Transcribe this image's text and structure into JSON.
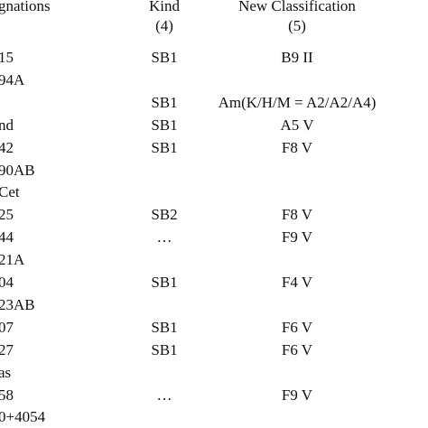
{
  "table": {
    "headers": [
      {
        "label": "gnations",
        "sub": ""
      },
      {
        "label": "Kind",
        "sub": "(4)"
      },
      {
        "label": "New Classification",
        "sub": "(5)"
      }
    ],
    "rows": [
      {
        "designation": "15",
        "kind": "SB1",
        "classification": "B9 II"
      },
      {
        "designation": "94A",
        "kind": "",
        "classification": ""
      },
      {
        "designation": "",
        "kind": "SB1",
        "classification": "Am(K/H/M = A2/A2/A4)"
      },
      {
        "designation": "nd",
        "kind": "SB1",
        "classification": "A5 V"
      },
      {
        "designation": "42",
        "kind": "SB1",
        "classification": "F8 V"
      },
      {
        "designation": "90AB",
        "kind": "",
        "classification": ""
      },
      {
        "designation": " Cet",
        "kind": "",
        "classification": ""
      },
      {
        "designation": "25",
        "kind": "SB2",
        "classification": "F8 V"
      },
      {
        "designation": "44",
        "kind": "…",
        "classification": "F9 V"
      },
      {
        "designation": "21A",
        "kind": "",
        "classification": ""
      },
      {
        "designation": "04",
        "kind": "SB1",
        "classification": "F4 V"
      },
      {
        "designation": "23AB",
        "kind": "",
        "classification": ""
      },
      {
        "designation": "07",
        "kind": "SB1",
        "classification": "F6 V"
      },
      {
        "designation": "27",
        "kind": "SB1",
        "classification": "F6 V"
      },
      {
        "designation": "as",
        "kind": "",
        "classification": ""
      },
      {
        "designation": "58",
        "kind": "…",
        "classification": "F9 V"
      },
      {
        "designation": "0+4054",
        "kind": "",
        "classification": ""
      }
    ]
  }
}
